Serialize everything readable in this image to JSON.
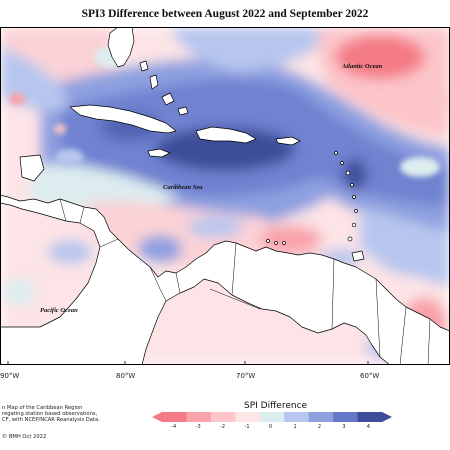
{
  "title": "SPI3 Difference between August 2022 and September 2022",
  "places": {
    "atlantic": "Atlantic Ocean",
    "caribbean": "Caribbean Sea",
    "pacific": "Pacific Ocean"
  },
  "longitudes": [
    "90°W",
    "80°W",
    "70°W",
    "60°W"
  ],
  "credit": {
    "line1": "n Map of the Caribbean Region",
    "line2": "regating station based observations,",
    "line3": "CF, with NCEP/NCAR Reanalysis Data.",
    "line4": "© BMH Oct 2022"
  },
  "legend": {
    "title": "SPI Difference",
    "ticks": [
      "-4",
      "-3",
      "-2",
      "-1",
      "0",
      "1",
      "2",
      "3",
      "4"
    ],
    "colors": [
      "#f47b86",
      "#f8a3aa",
      "#fbc5c9",
      "#fde4e6",
      "#dcecef",
      "#b7c6ee",
      "#8ea0e0",
      "#6577c8",
      "#3e4d9a"
    ]
  },
  "colors": {
    "land": "#ffffff",
    "water_neutral": "#dcecef",
    "dry_strong": "#f47b86",
    "wet_strong": "#3e4d9a"
  }
}
